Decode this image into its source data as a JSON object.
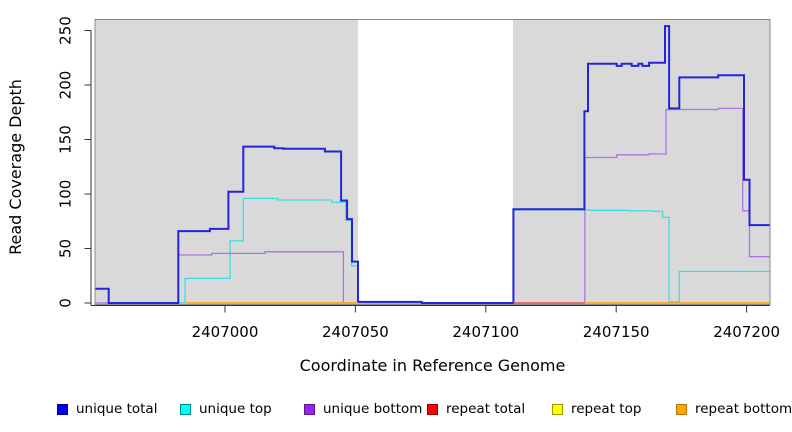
{
  "chart_data": {
    "type": "line",
    "style": "step-coverage",
    "title": "",
    "xlabel": "Coordinate in Reference Genome",
    "ylabel": "Read Coverage Depth",
    "x_ticks": {
      "values": [
        2407000,
        2407050,
        2407100,
        2407150,
        2407200
      ],
      "labels": [
        "2407000",
        "2407050",
        "2407100",
        "2407150",
        "2407200"
      ]
    },
    "y_ticks": {
      "values": [
        0,
        50,
        100,
        150,
        200,
        250
      ],
      "labels": [
        "0",
        "50",
        "100",
        "150",
        "200",
        "250"
      ]
    },
    "x_range": [
      2406950,
      2407209
    ],
    "y_range": [
      0,
      260
    ],
    "grid": "off",
    "legend_position": "bottom",
    "plot_background": "#D9D9D9",
    "no_data_band": {
      "from": 2407051,
      "to": 2407110.4,
      "color": "#FFFFFF"
    },
    "series": [
      {
        "name": "unique top",
        "color": "#35E1E8",
        "width": 1.3,
        "segments": [
          {
            "breaks": [
              [
                2406950.2,
                0
              ],
              [
                2406984.7,
                22.6
              ],
              [
                2407001.9,
                57
              ],
              [
                2407007,
                96
              ],
              [
                2407020.3,
                94.5
              ],
              [
                2407040.9,
                92.5
              ],
              [
                2407046.3,
                76
              ],
              [
                2407048.5,
                34
              ],
              [
                2407050.9,
                1
              ],
              [
                2407053,
                0
              ],
              [
                2407110.6,
                85.5
              ],
              [
                2407140,
                85
              ],
              [
                2407155,
                84.5
              ],
              [
                2407164,
                84
              ],
              [
                2407167.8,
                78.5
              ],
              [
                2407170.3,
                1
              ],
              [
                2407174.2,
                29
              ]
            ],
            "end": 2407209
          }
        ]
      },
      {
        "name": "unique bottom",
        "color": "#AA74E2",
        "width": 1.3,
        "segments": [
          {
            "breaks": [
              [
                2406950.2,
                0
              ],
              [
                2406982.1,
                44
              ],
              [
                2406994.9,
                45.5
              ],
              [
                2407015.3,
                47
              ],
              [
                2407045.4,
                0
              ],
              [
                2407138,
                133.5
              ],
              [
                2407150.2,
                136
              ],
              [
                2407162.3,
                136.7
              ],
              [
                2407169.1,
                177.5
              ],
              [
                2407189.1,
                178.5
              ],
              [
                2407198.5,
                84.6
              ],
              [
                2407201.1,
                42.5
              ]
            ],
            "end": 2407209
          }
        ]
      },
      {
        "name": "unique total",
        "color": "#2424DC",
        "width": 2,
        "segments": [
          {
            "breaks": [
              [
                2406950.2,
                13
              ],
              [
                2406955.4,
                0
              ],
              [
                2406982.1,
                66
              ],
              [
                2406994.2,
                68
              ],
              [
                2407001.3,
                102
              ],
              [
                2407007,
                143.5
              ],
              [
                2407018.9,
                142
              ],
              [
                2407022.4,
                141.5
              ],
              [
                2407038.3,
                139
              ],
              [
                2407044.5,
                94
              ],
              [
                2407046.8,
                77
              ],
              [
                2407048.7,
                38
              ],
              [
                2407051,
                1
              ],
              [
                2407075.5,
                0
              ],
              [
                2407110.6,
                86
              ],
              [
                2407137.8,
                176
              ],
              [
                2407139.2,
                219.5
              ],
              [
                2407150.2,
                217.5
              ],
              [
                2407152.1,
                219.5
              ],
              [
                2407155.9,
                217.5
              ],
              [
                2407158.5,
                219.5
              ],
              [
                2407160,
                217.5
              ],
              [
                2407162.6,
                220.4
              ],
              [
                2407168.7,
                254
              ],
              [
                2407170.3,
                178.5
              ],
              [
                2407174.2,
                207
              ],
              [
                2407189.1,
                209
              ],
              [
                2407199,
                113
              ],
              [
                2407201.1,
                71.5
              ]
            ],
            "end": 2407209
          }
        ]
      },
      {
        "name": "repeat top",
        "color": "#FFFF00",
        "width": 1.3,
        "segments": [
          {
            "breaks": [
              [
                2407110.6,
                0
              ]
            ],
            "end": 2407138
          }
        ]
      },
      {
        "name": "repeat total",
        "color": "#E03A50",
        "width": 1.3,
        "segments": [
          {
            "breaks": [
              [
                2407110.6,
                0
              ]
            ],
            "end": 2407138
          }
        ]
      },
      {
        "name": "repeat bottom",
        "color": "#FFA41E",
        "width": 1.7,
        "segments": [
          {
            "breaks": [
              [
                2406984.7,
                0
              ]
            ],
            "end": 2407051
          },
          {
            "breaks": [
              [
                2407138,
                0
              ]
            ],
            "end": 2407209
          }
        ]
      }
    ],
    "legend": [
      {
        "label": "unique total",
        "fill": "#0000EE",
        "border": "#00008B"
      },
      {
        "label": "unique top",
        "fill": "#00FFFF",
        "border": "#008B8B"
      },
      {
        "label": "unique bottom",
        "fill": "#A020F0",
        "border": "#551A8B"
      },
      {
        "label": "repeat total",
        "fill": "#FF0000",
        "border": "#8B0000"
      },
      {
        "label": "repeat top",
        "fill": "#FFFF00",
        "border": "#9B9B00"
      },
      {
        "label": "repeat bottom",
        "fill": "#FFA500",
        "border": "#B87400"
      }
    ]
  }
}
